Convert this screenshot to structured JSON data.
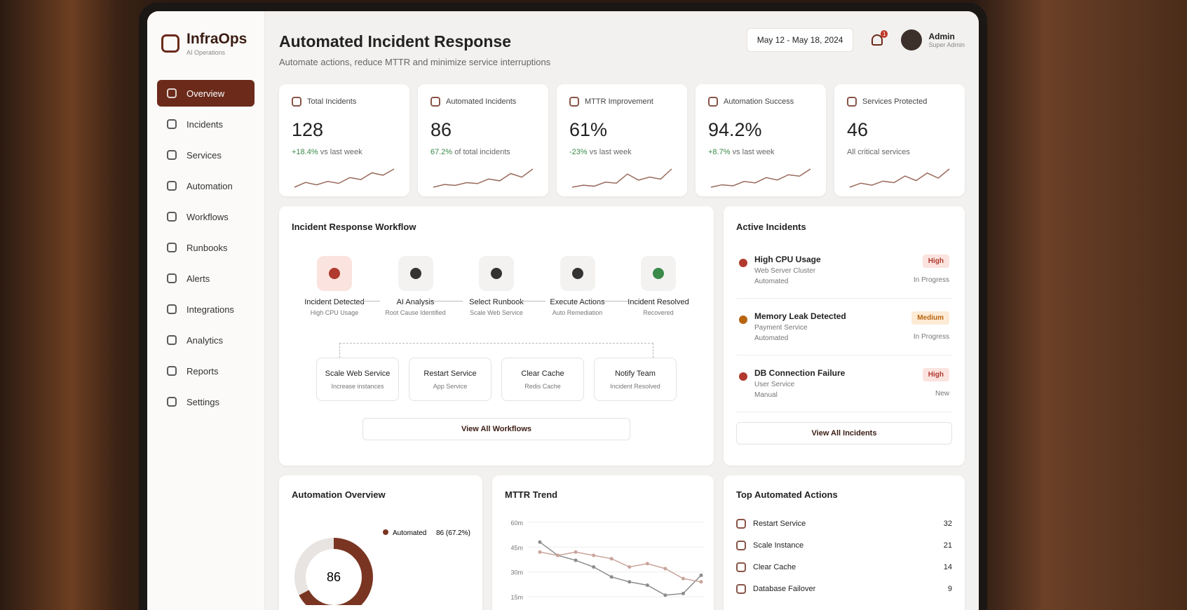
{
  "brand": {
    "name": "InfraOps",
    "tagline": "AI Operations"
  },
  "nav": [
    "Overview",
    "Incidents",
    "Services",
    "Automation",
    "Workflows",
    "Runbooks",
    "Alerts",
    "Integrations",
    "Analytics",
    "Reports",
    "Settings"
  ],
  "header": {
    "title": "Automated Incident Response",
    "subtitle": "Automate actions, reduce MTTR and minimize service interruptions",
    "date_range": "May 12 - May 18, 2024",
    "notifications": "1",
    "user": {
      "name": "Admin",
      "role": "Super Admin"
    }
  },
  "kpis": [
    {
      "title": "Total Incidents",
      "value": "128",
      "delta": "+18.4%",
      "note": "vs last week",
      "trend": [
        3,
        4,
        3.5,
        4.2,
        3.8,
        5,
        4.6,
        6,
        5.5,
        6.8
      ]
    },
    {
      "title": "Automated Incidents",
      "value": "86",
      "delta": "67.2%",
      "note": "of total incidents",
      "trend": [
        3,
        3.6,
        3.4,
        4,
        3.8,
        4.8,
        4.4,
        6,
        5.2,
        7
      ]
    },
    {
      "title": "MTTR Improvement",
      "value": "61%",
      "delta": "-23%",
      "note": "vs last week",
      "trend": [
        3,
        3.4,
        3.2,
        4,
        3.8,
        5.6,
        4.4,
        5,
        4.6,
        6.6
      ]
    },
    {
      "title": "Automation Success",
      "value": "94.2%",
      "delta": "+8.7%",
      "note": "vs last week",
      "trend": [
        3,
        3.5,
        3.3,
        4.2,
        3.9,
        5,
        4.5,
        5.6,
        5.3,
        6.8
      ]
    },
    {
      "title": "Services Protected",
      "value": "46",
      "note": "All critical services",
      "trend": [
        3,
        3.8,
        3.4,
        4.2,
        3.9,
        5.2,
        4.3,
        5.8,
        4.8,
        6.6
      ]
    }
  ],
  "workflow": {
    "title": "Incident Response Workflow",
    "steps": [
      {
        "label": "Incident Detected",
        "detail": "High CPU Usage"
      },
      {
        "label": "AI Analysis",
        "detail": "Root Cause Identified"
      },
      {
        "label": "Select Runbook",
        "detail": "Scale Web Service"
      },
      {
        "label": "Execute Actions",
        "detail": "Auto Remediation"
      },
      {
        "label": "Incident Resolved",
        "detail": "Recovered"
      }
    ],
    "actions": [
      {
        "label": "Scale Web Service",
        "detail": "Increase instances"
      },
      {
        "label": "Restart Service",
        "detail": "App Service"
      },
      {
        "label": "Clear Cache",
        "detail": "Redis Cache"
      },
      {
        "label": "Notify Team",
        "detail": "Incident Resolved"
      }
    ],
    "link": "View All Workflows"
  },
  "active_incidents": {
    "title": "Active Incidents",
    "items": [
      {
        "name": "High CPU Usage",
        "service": "Web Server Cluster",
        "mode": "Automated",
        "severity": "High",
        "status": "In Progress"
      },
      {
        "name": "Memory Leak Detected",
        "service": "Payment Service",
        "mode": "Automated",
        "severity": "Medium",
        "status": "In Progress"
      },
      {
        "name": "DB Connection Failure",
        "service": "User Service",
        "mode": "Manual",
        "severity": "High",
        "status": "New"
      }
    ],
    "link": "View All Incidents"
  },
  "automation_overview": {
    "title": "Automation Overview",
    "center": "86",
    "legend": [
      {
        "name": "Automated",
        "label": "86 (67.2%)",
        "share": 67.2
      }
    ]
  },
  "mttr_trend": {
    "title": "MTTR Trend",
    "ylim": [
      10,
      65
    ],
    "yticks": [
      {
        "value": 60,
        "label": "60m"
      },
      {
        "value": 45,
        "label": "45m"
      },
      {
        "value": 30,
        "label": "30m"
      },
      {
        "value": 15,
        "label": "15m"
      }
    ],
    "series": [
      {
        "color": "#8c8c8c",
        "values": [
          48,
          40,
          37,
          33,
          27,
          24,
          22,
          16,
          17,
          28
        ]
      },
      {
        "color": "#c9a49b",
        "values": [
          42,
          40,
          42,
          40,
          38,
          33,
          35,
          32,
          26,
          24
        ]
      }
    ]
  },
  "top_actions": {
    "title": "Top Automated Actions",
    "items": [
      {
        "name": "Restart Service",
        "count": 32
      },
      {
        "name": "Scale Instance",
        "count": 21
      },
      {
        "name": "Clear Cache",
        "count": 14
      },
      {
        "name": "Database Failover",
        "count": 9
      }
    ]
  }
}
